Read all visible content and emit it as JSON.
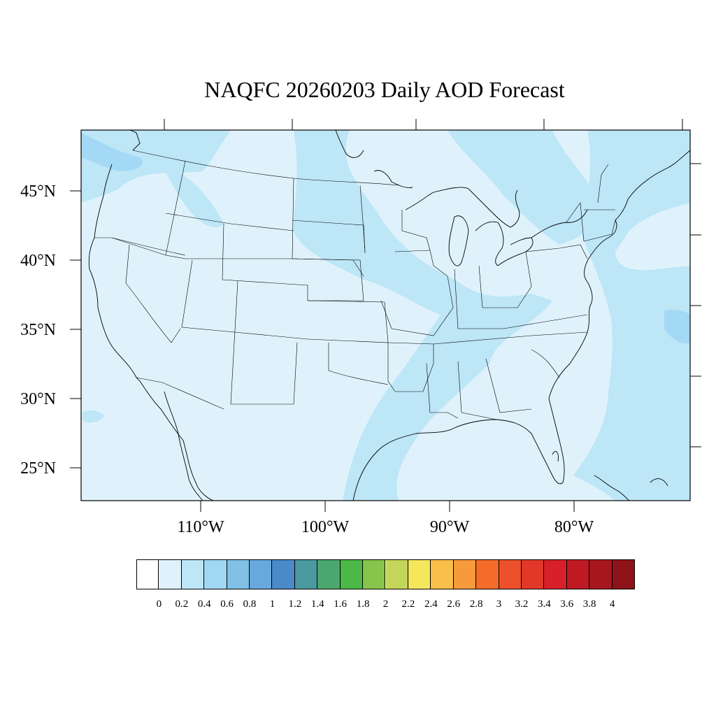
{
  "title": "NAQFC 20260203 Daily AOD Forecast",
  "map": {
    "lat_labels": [
      "45°N",
      "40°N",
      "35°N",
      "30°N",
      "25°N"
    ],
    "lon_labels": [
      "110°W",
      "100°W",
      "90°W",
      "80°W"
    ],
    "background_color": "#dff2fb",
    "band_color": "#bde6f7",
    "high_color": "#a3d9f4"
  },
  "colorbar": {
    "labels": [
      "0",
      "0.2",
      "0.4",
      "0.6",
      "0.8",
      "1",
      "1.2",
      "1.4",
      "1.6",
      "1.8",
      "2",
      "2.2",
      "2.4",
      "2.6",
      "2.8",
      "3",
      "3.2",
      "3.4",
      "3.6",
      "3.8",
      "4"
    ],
    "colors": [
      "#ffffff",
      "#dff2fb",
      "#bde6f7",
      "#a0d7f3",
      "#82c0e6",
      "#68a8dc",
      "#4a8ac9",
      "#4a9aa0",
      "#4aa86e",
      "#4cb847",
      "#86c44c",
      "#c4d65a",
      "#f6e65c",
      "#f8bf4a",
      "#f79a3c",
      "#f46b2a",
      "#ec512c",
      "#e2382a",
      "#d7202a",
      "#bf1a24",
      "#a7161d",
      "#8e1318"
    ]
  }
}
